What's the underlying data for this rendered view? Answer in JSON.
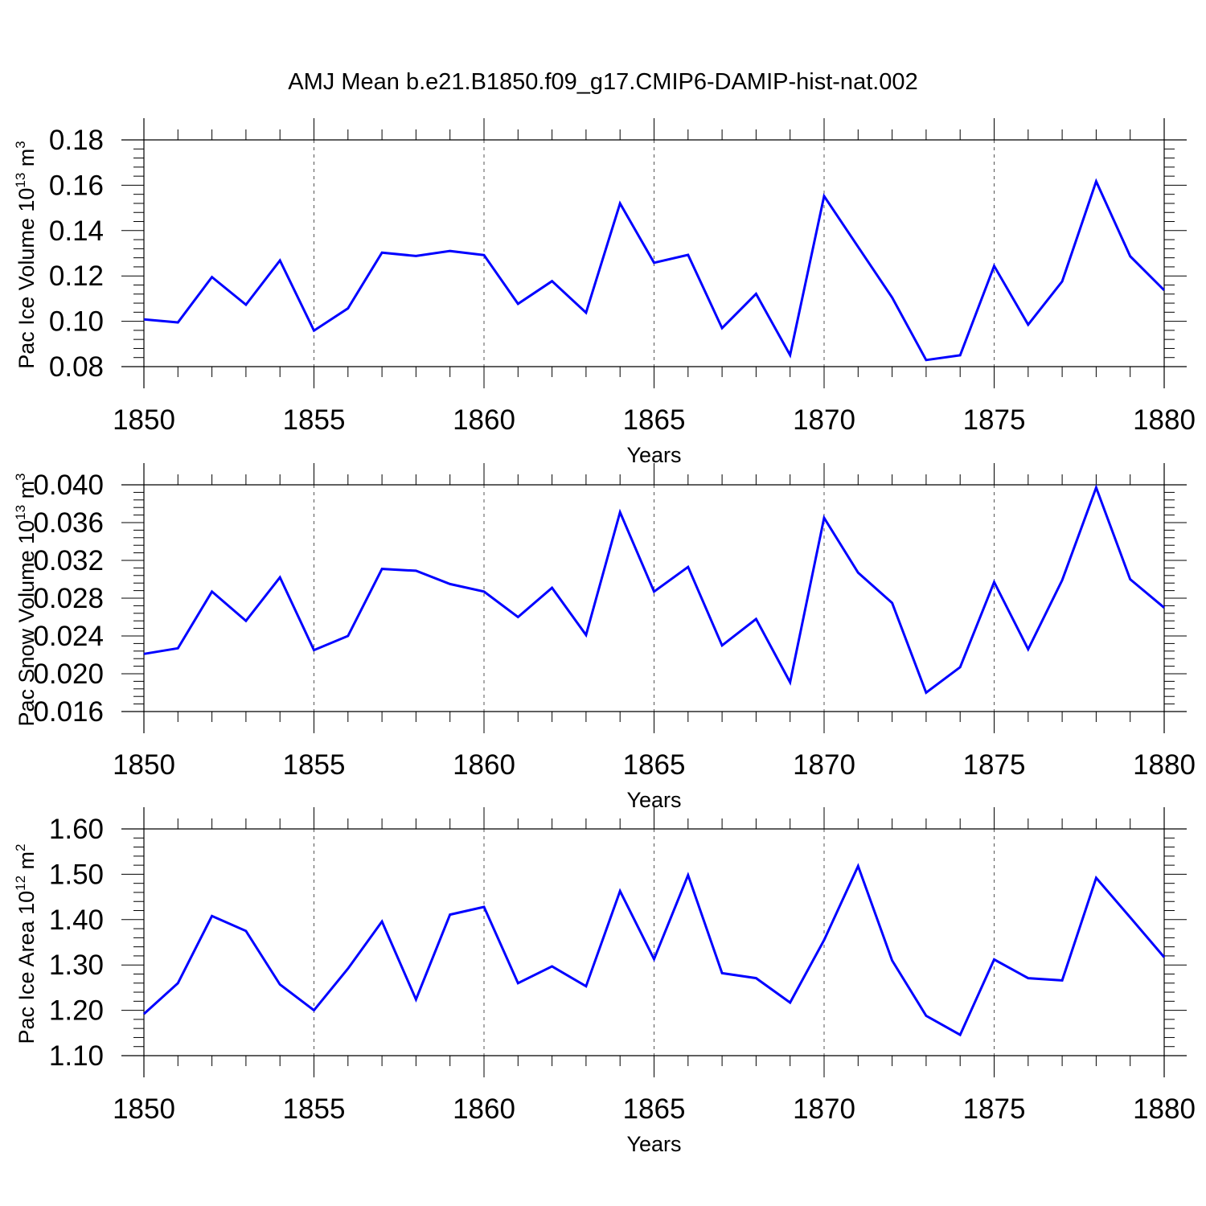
{
  "title": "AMJ Mean b.e21.B1850.f09_g17.CMIP6-DAMIP-hist-nat.002",
  "colors": {
    "series": "#0000ff",
    "axes": "#000000",
    "grid": "#555555",
    "background": "#ffffff"
  },
  "chart_data": [
    {
      "type": "line",
      "ylabel": {
        "main": "Pac Ice Volume 10",
        "exp": "13",
        "unit": " m",
        "unit_exp": "3"
      },
      "xlabel": "Years",
      "xlim": [
        1850,
        1880
      ],
      "ylim": [
        0.08,
        0.18
      ],
      "xticks": [
        1850,
        1855,
        1860,
        1865,
        1870,
        1875,
        1880
      ],
      "xtick_labels": [
        "1850",
        "1855",
        "1860",
        "1865",
        "1870",
        "1875",
        "1880"
      ],
      "yticks": [
        0.08,
        0.1,
        0.12,
        0.14,
        0.16,
        0.18
      ],
      "ytick_labels": [
        "0.08",
        "0.10",
        "0.12",
        "0.14",
        "0.16",
        "0.18"
      ],
      "grid": "dashed vertical at major x ticks",
      "x": [
        1850,
        1851,
        1852,
        1853,
        1854,
        1855,
        1856,
        1857,
        1858,
        1859,
        1860,
        1861,
        1862,
        1863,
        1864,
        1865,
        1866,
        1867,
        1868,
        1869,
        1870,
        1871,
        1872,
        1873,
        1874,
        1875,
        1876,
        1877,
        1878,
        1879,
        1880
      ],
      "values": [
        0.1008,
        0.0995,
        0.1195,
        0.1073,
        0.1268,
        0.0959,
        0.1057,
        0.1303,
        0.1288,
        0.131,
        0.1292,
        0.1077,
        0.1177,
        0.1038,
        0.152,
        0.1258,
        0.1293,
        0.097,
        0.1121,
        0.0851,
        0.1552,
        0.1328,
        0.1105,
        0.0829,
        0.085,
        0.1244,
        0.0985,
        0.1176,
        0.1617,
        0.1287,
        0.1137
      ]
    },
    {
      "type": "line",
      "ylabel": {
        "main": "Pac Snow Volume 10",
        "exp": "13",
        "unit": " m",
        "unit_exp": "3"
      },
      "xlabel": "Years",
      "xlim": [
        1850,
        1880
      ],
      "ylim": [
        0.016,
        0.04
      ],
      "xticks": [
        1850,
        1855,
        1860,
        1865,
        1870,
        1875,
        1880
      ],
      "xtick_labels": [
        "1850",
        "1855",
        "1860",
        "1865",
        "1870",
        "1875",
        "1880"
      ],
      "yticks": [
        0.016,
        0.02,
        0.024,
        0.028,
        0.032,
        0.036,
        0.04
      ],
      "ytick_labels": [
        "0.016",
        "0.020",
        "0.024",
        "0.028",
        "0.032",
        "0.036",
        "0.040"
      ],
      "grid": "dashed vertical at major x ticks",
      "x": [
        1850,
        1851,
        1852,
        1853,
        1854,
        1855,
        1856,
        1857,
        1858,
        1859,
        1860,
        1861,
        1862,
        1863,
        1864,
        1865,
        1866,
        1867,
        1868,
        1869,
        1870,
        1871,
        1872,
        1873,
        1874,
        1875,
        1876,
        1877,
        1878,
        1879,
        1880
      ],
      "values": [
        0.0221,
        0.0227,
        0.0287,
        0.0256,
        0.0302,
        0.0225,
        0.024,
        0.0311,
        0.0309,
        0.0295,
        0.0287,
        0.026,
        0.0291,
        0.0241,
        0.0371,
        0.0287,
        0.0313,
        0.023,
        0.0258,
        0.0191,
        0.0365,
        0.0307,
        0.0275,
        0.018,
        0.0207,
        0.0297,
        0.0226,
        0.0299,
        0.0397,
        0.03,
        0.027
      ]
    },
    {
      "type": "line",
      "ylabel": {
        "main": "Pac Ice Area 10",
        "exp": "12",
        "unit": " m",
        "unit_exp": "2"
      },
      "xlabel": "Years",
      "xlim": [
        1850,
        1880
      ],
      "ylim": [
        1.1,
        1.6
      ],
      "xticks": [
        1850,
        1855,
        1860,
        1865,
        1870,
        1875,
        1880
      ],
      "xtick_labels": [
        "1850",
        "1855",
        "1860",
        "1865",
        "1870",
        "1875",
        "1880"
      ],
      "yticks": [
        1.1,
        1.2,
        1.3,
        1.4,
        1.5,
        1.6
      ],
      "ytick_labels": [
        "1.10",
        "1.20",
        "1.30",
        "1.40",
        "1.50",
        "1.60"
      ],
      "grid": "dashed vertical at major x ticks",
      "x": [
        1850,
        1851,
        1852,
        1853,
        1854,
        1855,
        1856,
        1857,
        1858,
        1859,
        1860,
        1861,
        1862,
        1863,
        1864,
        1865,
        1866,
        1867,
        1868,
        1869,
        1870,
        1871,
        1872,
        1873,
        1874,
        1875,
        1876,
        1877,
        1878,
        1879,
        1880
      ],
      "values": [
        1.192,
        1.26,
        1.408,
        1.375,
        1.257,
        1.2,
        1.292,
        1.396,
        1.224,
        1.411,
        1.428,
        1.26,
        1.297,
        1.253,
        1.463,
        1.313,
        1.498,
        1.282,
        1.271,
        1.217,
        1.355,
        1.518,
        1.31,
        1.188,
        1.146,
        1.312,
        1.271,
        1.266,
        1.492,
        1.405,
        1.317
      ]
    }
  ]
}
